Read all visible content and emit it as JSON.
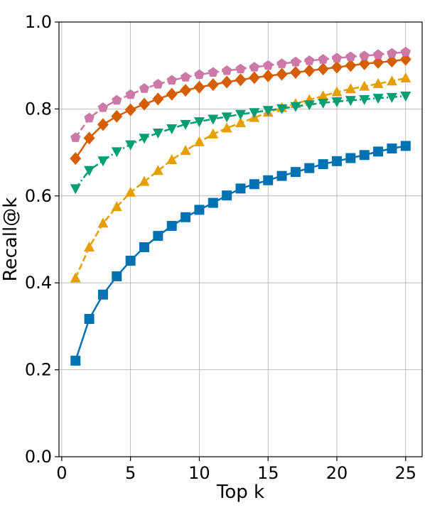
{
  "chart_data": {
    "type": "line",
    "title": "",
    "xlabel": "Top k",
    "ylabel": "Recall@k",
    "xlim": [
      -0.2,
      26.2
    ],
    "ylim": [
      0.0,
      1.0
    ],
    "xticks": [
      0,
      5,
      10,
      15,
      20,
      25
    ],
    "xtick_labels": [
      "0",
      "5",
      "10",
      "15",
      "20",
      "25"
    ],
    "yticks": [
      0.0,
      0.2,
      0.4,
      0.6,
      0.8,
      1.0
    ],
    "ytick_labels": [
      "0.0",
      "0.2",
      "0.4",
      "0.6",
      "0.8",
      "1.0"
    ],
    "grid": true,
    "legend": "none",
    "x": [
      1,
      2,
      3,
      4,
      5,
      6,
      7,
      8,
      9,
      10,
      11,
      12,
      13,
      14,
      15,
      16,
      17,
      18,
      19,
      20,
      21,
      22,
      23,
      24,
      25
    ],
    "series": [
      {
        "color": "#0072b2",
        "marker": "square",
        "linestyle": "solid",
        "values": [
          0.221,
          0.317,
          0.373,
          0.415,
          0.451,
          0.482,
          0.508,
          0.531,
          0.551,
          0.568,
          0.584,
          0.601,
          0.617,
          0.627,
          0.636,
          0.646,
          0.655,
          0.664,
          0.673,
          0.68,
          0.687,
          0.694,
          0.702,
          0.709,
          0.715
        ]
      },
      {
        "color": "#e69f00",
        "marker": "triangle-up",
        "linestyle": "dashed",
        "values": [
          0.411,
          0.482,
          0.537,
          0.575,
          0.608,
          0.633,
          0.658,
          0.683,
          0.704,
          0.724,
          0.742,
          0.756,
          0.768,
          0.78,
          0.792,
          0.803,
          0.812,
          0.821,
          0.83,
          0.839,
          0.846,
          0.852,
          0.858,
          0.864,
          0.871
        ]
      },
      {
        "color": "#009e73",
        "marker": "triangle-down",
        "linestyle": "dashdot",
        "values": [
          0.617,
          0.659,
          0.681,
          0.702,
          0.718,
          0.733,
          0.745,
          0.755,
          0.765,
          0.771,
          0.777,
          0.782,
          0.788,
          0.792,
          0.797,
          0.801,
          0.806,
          0.81,
          0.814,
          0.817,
          0.82,
          0.822,
          0.825,
          0.827,
          0.83
        ]
      },
      {
        "color": "#d55e00",
        "marker": "diamond",
        "linestyle": "solid",
        "values": [
          0.686,
          0.733,
          0.764,
          0.783,
          0.798,
          0.811,
          0.823,
          0.834,
          0.843,
          0.85,
          0.856,
          0.862,
          0.867,
          0.872,
          0.876,
          0.88,
          0.884,
          0.888,
          0.892,
          0.896,
          0.9,
          0.904,
          0.907,
          0.91,
          0.914
        ]
      },
      {
        "color": "#cc79a7",
        "marker": "pentagon",
        "linestyle": "dashed",
        "values": [
          0.734,
          0.779,
          0.803,
          0.82,
          0.833,
          0.847,
          0.857,
          0.866,
          0.873,
          0.879,
          0.884,
          0.888,
          0.892,
          0.896,
          0.9,
          0.904,
          0.908,
          0.911,
          0.914,
          0.917,
          0.92,
          0.922,
          0.925,
          0.928,
          0.931
        ]
      }
    ]
  }
}
